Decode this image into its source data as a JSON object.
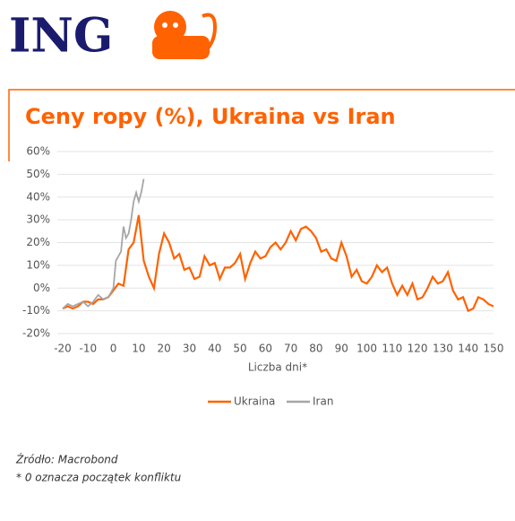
{
  "logo": "ING",
  "chart_data": {
    "type": "line",
    "title": "Ceny ropy (%), Ukraina vs Iran",
    "x_label": "Liczba dni*",
    "xlim": [
      -20,
      150
    ],
    "xticks": [
      -20,
      -10,
      0,
      10,
      20,
      30,
      40,
      50,
      60,
      70,
      80,
      90,
      100,
      110,
      120,
      130,
      140,
      150
    ],
    "ylim": [
      -20,
      60
    ],
    "yticks": [
      {
        "value": -20,
        "label": "-20%"
      },
      {
        "value": -10,
        "label": "-10%"
      },
      {
        "value": 0,
        "label": "0%"
      },
      {
        "value": 10,
        "label": "10%"
      },
      {
        "value": 20,
        "label": "20%"
      },
      {
        "value": 30,
        "label": "30%"
      },
      {
        "value": 40,
        "label": "40%"
      },
      {
        "value": 50,
        "label": "50%"
      },
      {
        "value": 60,
        "label": "60%"
      }
    ],
    "grid": true,
    "legend": "bottom",
    "series": [
      {
        "name": "Ukraina",
        "color": "#ff6200",
        "x": [
          -20,
          -18,
          -16,
          -14,
          -12,
          -10,
          -8,
          -6,
          -4,
          -2,
          0,
          2,
          4,
          6,
          8,
          10,
          12,
          14,
          16,
          18,
          20,
          22,
          24,
          26,
          28,
          30,
          32,
          34,
          36,
          38,
          40,
          42,
          44,
          46,
          48,
          50,
          52,
          54,
          56,
          58,
          60,
          62,
          64,
          66,
          68,
          70,
          72,
          74,
          76,
          78,
          80,
          82,
          84,
          86,
          88,
          90,
          92,
          94,
          96,
          98,
          100,
          102,
          104,
          106,
          108,
          110,
          112,
          114,
          116,
          118,
          120,
          122,
          124,
          126,
          128,
          130,
          132,
          134,
          136,
          138,
          140,
          142,
          144,
          146,
          148,
          150
        ],
        "values": [
          -9,
          -8,
          -9,
          -8,
          -6,
          -6,
          -7,
          -5,
          -5,
          -4,
          -1,
          2,
          1,
          17,
          20,
          32,
          12,
          5,
          0,
          15,
          24,
          20,
          13,
          15,
          8,
          9,
          4,
          5,
          14,
          10,
          11,
          4,
          9,
          9,
          11,
          15,
          4,
          11,
          16,
          13,
          14,
          18,
          20,
          17,
          20,
          25,
          21,
          26,
          27,
          25,
          22,
          16,
          17,
          13,
          12,
          20,
          14,
          5,
          8,
          3,
          2,
          5,
          10,
          7,
          9,
          2,
          -3,
          1,
          -3,
          2,
          -5,
          -4,
          0,
          5,
          2,
          3,
          7,
          -1,
          -5,
          -4,
          -10,
          -9,
          -4,
          -5,
          -7,
          -8
        ]
      },
      {
        "name": "Iran",
        "color": "#a6a6a6",
        "x": [
          -20,
          -18,
          -16,
          -14,
          -12,
          -10,
          -8,
          -6,
          -4,
          -2,
          0,
          1,
          2,
          3,
          4,
          5,
          6,
          7,
          8,
          9,
          10,
          11,
          12
        ],
        "values": [
          -9,
          -7,
          -8,
          -7,
          -6,
          -8,
          -6,
          -3,
          -5,
          -4,
          0,
          12,
          14,
          16,
          27,
          22,
          24,
          30,
          38,
          42,
          38,
          42,
          48
        ]
      }
    ]
  },
  "footer": {
    "source": "Źródło: Macrobond",
    "note": "* 0 oznacza początek konfliktu"
  }
}
